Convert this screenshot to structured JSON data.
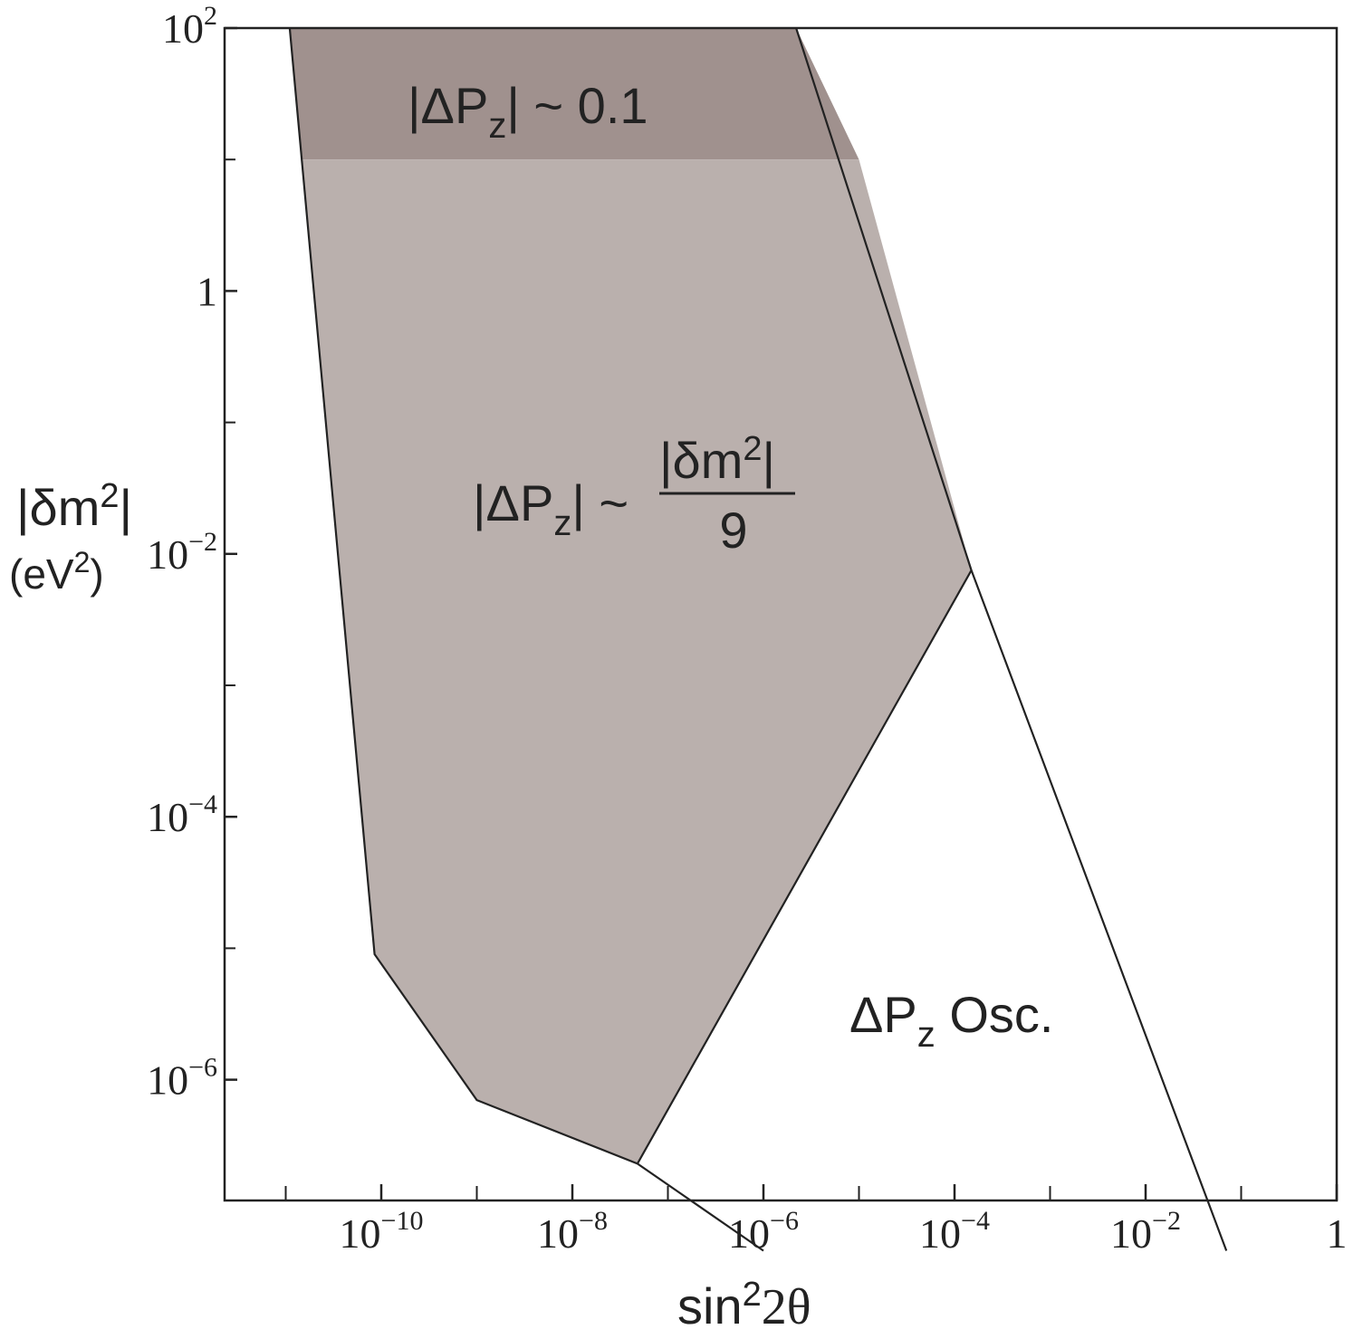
{
  "chart_data": {
    "type": "area",
    "xlabel": {
      "base": "sin",
      "sup": "2",
      "rest": "2θ"
    },
    "ylabel": {
      "line1_main": "|δm",
      "line1_sup": "2",
      "line1_end": "|",
      "line2_main": "(eV",
      "line2_sup": "2",
      "line2_end": ")"
    },
    "x_scale": "log",
    "y_scale": "log",
    "xlim": [
      1e-12,
      1
    ],
    "ylim": [
      5e-08,
      100
    ],
    "x_ticks": [
      {
        "value": 1e-10,
        "base": "10",
        "exp": "−10"
      },
      {
        "value": 1e-08,
        "base": "10",
        "exp": "−8"
      },
      {
        "value": 1e-06,
        "base": "10",
        "exp": "−6"
      },
      {
        "value": 0.0001,
        "base": "10",
        "exp": "−4"
      },
      {
        "value": 0.01,
        "base": "10",
        "exp": "−2"
      },
      {
        "value": 1,
        "base": "1",
        "exp": ""
      }
    ],
    "y_ticks": [
      {
        "value": 100,
        "base": "10",
        "exp": "2"
      },
      {
        "value": 1,
        "base": "1",
        "exp": ""
      },
      {
        "value": 0.01,
        "base": "10",
        "exp": "−2"
      },
      {
        "value": 0.0001,
        "base": "10",
        "exp": "−4"
      },
      {
        "value": 1e-06,
        "base": "10",
        "exp": "−6"
      }
    ],
    "regions": [
      {
        "label": {
          "prefix": "|ΔP",
          "sub": "z",
          "suffix": "| ~ 0.1"
        },
        "color": "#a0918e",
        "polygon": [
          [
            1.1e-11,
            100
          ],
          [
            2.2e-06,
            100
          ],
          [
            1e-05,
            10
          ],
          [
            1.5e-11,
            10
          ]
        ]
      },
      {
        "label": {
          "prefix": "|ΔP",
          "sub": "z",
          "suffix": "| ~",
          "num_prefix": "|δm",
          "num_sup": "2",
          "num_suffix": "|",
          "den": "9"
        },
        "color": "#bab0ad",
        "polygon": [
          [
            1.5e-11,
            10
          ],
          [
            1e-05,
            10
          ],
          [
            0.00015,
            0.0075
          ],
          [
            4.8e-08,
            2.3e-07
          ],
          [
            1e-09,
            7e-07
          ],
          [
            8.5e-11,
            9e-06
          ]
        ]
      },
      {
        "label": {
          "prefix": "ΔP",
          "sub": "z",
          "suffix": " Osc."
        },
        "color": "#ffffff"
      }
    ],
    "lines": [
      {
        "name": "left-boundary",
        "points": [
          [
            1.1e-11,
            100
          ],
          [
            8.5e-11,
            9e-06
          ],
          [
            1e-09,
            7e-07
          ],
          [
            4.8e-08,
            2.3e-07
          ],
          [
            1e-06,
            5e-08
          ]
        ]
      },
      {
        "name": "right-boundary",
        "points": [
          [
            2.2e-06,
            100
          ],
          [
            0.00015,
            0.0075
          ],
          [
            0.07,
            5e-08
          ]
        ]
      },
      {
        "name": "inner-boundary",
        "points": [
          [
            0.00015,
            0.0075
          ],
          [
            4.8e-08,
            2.3e-07
          ]
        ]
      }
    ]
  }
}
